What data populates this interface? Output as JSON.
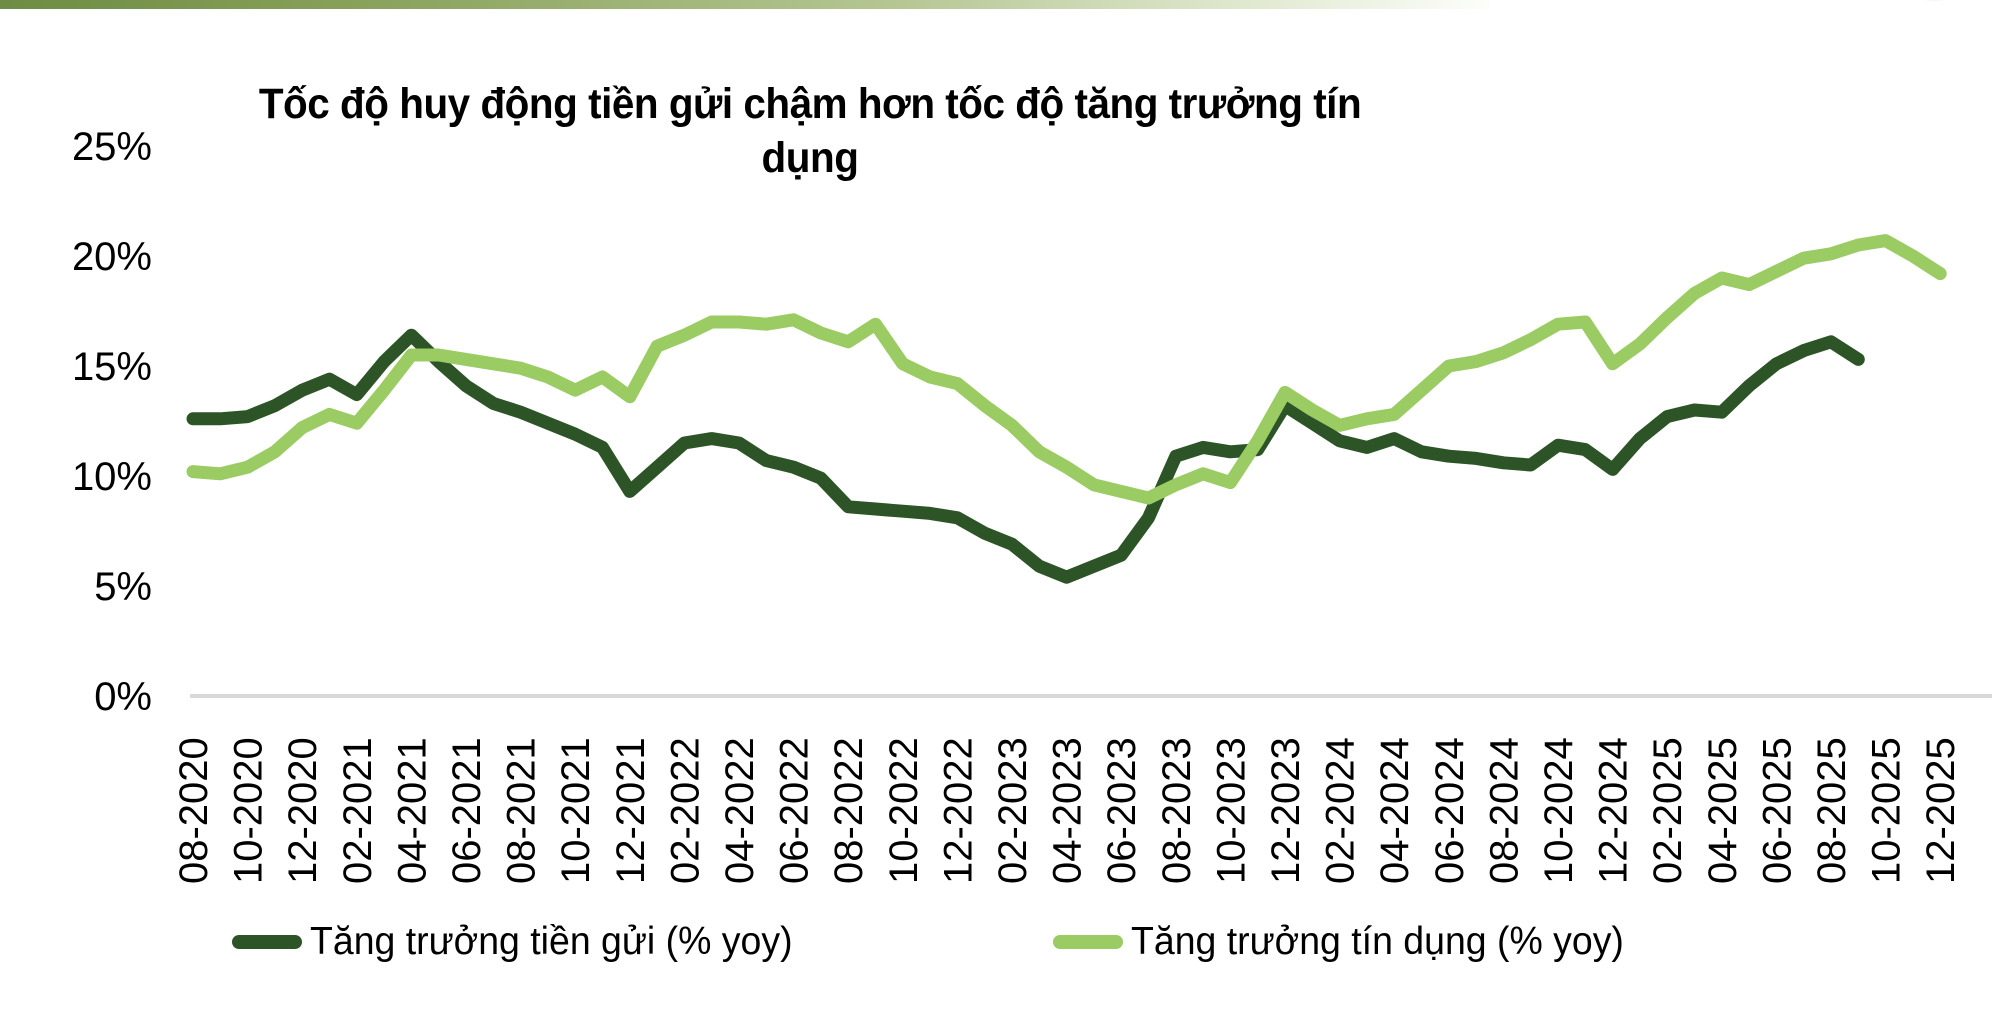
{
  "page": {
    "title": "Tốc độ huy động tiền gửi chậm hơn tốc độ tăng trưởng tín dụng"
  },
  "decor": {
    "top_bar_gradient_left": "#6E8C43",
    "top_bar_gradient_right": "#FDFEFB",
    "axis_line_color": "#D9D9D9"
  },
  "chart_data": {
    "type": "line",
    "title": "Tốc độ huy động tiền gửi chậm hơn tốc độ tăng trưởng tín dụng",
    "grid": "off",
    "legend_position": "bottom",
    "y_axis": {
      "tick_labels": [
        "25%",
        "20%",
        "15%",
        "10%",
        "5%",
        "0%"
      ],
      "min": 0,
      "max": 25,
      "unit": "%"
    },
    "x_axis": {
      "tick_every_n_months": 2,
      "first_tick": "08-2020",
      "last_tick": "12-2025"
    },
    "months": [
      "08-2020",
      "09-2020",
      "10-2020",
      "11-2020",
      "12-2020",
      "01-2021",
      "02-2021",
      "03-2021",
      "04-2021",
      "05-2021",
      "06-2021",
      "07-2021",
      "08-2021",
      "09-2021",
      "10-2021",
      "11-2021",
      "12-2021",
      "01-2022",
      "02-2022",
      "03-2022",
      "04-2022",
      "05-2022",
      "06-2022",
      "07-2022",
      "08-2022",
      "09-2022",
      "10-2022",
      "11-2022",
      "12-2022",
      "01-2023",
      "02-2023",
      "03-2023",
      "04-2023",
      "05-2023",
      "06-2023",
      "07-2023",
      "08-2023",
      "09-2023",
      "10-2023",
      "11-2023",
      "12-2023",
      "01-2024",
      "02-2024",
      "03-2024",
      "04-2024",
      "05-2024",
      "06-2024",
      "07-2024",
      "08-2024",
      "09-2024",
      "10-2024",
      "11-2024",
      "12-2024",
      "01-2025",
      "02-2025",
      "03-2025",
      "04-2025",
      "05-2025",
      "06-2025",
      "07-2025",
      "08-2025",
      "09-2025",
      "10-2025",
      "11-2025",
      "12-2025"
    ],
    "series": [
      {
        "name": "Tăng trưởng tiền gửi (% yoy)",
        "color": "#2D5427",
        "values": [
          12.6,
          12.6,
          12.7,
          13.2,
          13.9,
          14.4,
          13.7,
          15.2,
          16.4,
          15.2,
          14.1,
          13.3,
          12.9,
          12.4,
          11.9,
          11.3,
          9.3,
          10.4,
          11.5,
          11.7,
          11.5,
          10.7,
          10.4,
          9.9,
          8.6,
          8.5,
          8.4,
          8.3,
          8.1,
          7.4,
          6.9,
          5.9,
          5.4,
          5.9,
          6.4,
          8.1,
          10.9,
          11.3,
          11.1,
          11.2,
          13.2,
          12.4,
          11.6,
          11.3,
          11.7,
          11.1,
          10.9,
          10.8,
          10.6,
          10.5,
          11.4,
          11.2,
          10.3,
          11.7,
          12.7,
          13.0,
          12.9,
          14.1,
          15.1,
          15.7,
          16.1,
          15.3
        ]
      },
      {
        "name": "Tăng trưởng tín dụng (% yoy)",
        "color": "#9BCB63",
        "values": [
          10.2,
          10.1,
          10.4,
          11.1,
          12.2,
          12.8,
          12.4,
          13.9,
          15.5,
          15.5,
          15.3,
          15.1,
          14.9,
          14.5,
          13.9,
          14.5,
          13.6,
          15.9,
          16.4,
          17.0,
          17.0,
          16.9,
          17.1,
          16.5,
          16.1,
          16.9,
          15.1,
          14.5,
          14.2,
          13.2,
          12.3,
          11.1,
          10.4,
          9.6,
          9.3,
          9.0,
          9.6,
          10.1,
          9.7,
          11.6,
          13.8,
          13.0,
          12.3,
          12.6,
          12.8,
          13.9,
          15.0,
          15.2,
          15.6,
          16.2,
          16.9,
          17.0,
          15.1,
          16.0,
          17.2,
          18.3,
          19.0,
          18.7,
          19.3,
          19.9,
          20.1,
          20.5,
          20.7,
          20.0,
          19.2
        ]
      }
    ]
  }
}
